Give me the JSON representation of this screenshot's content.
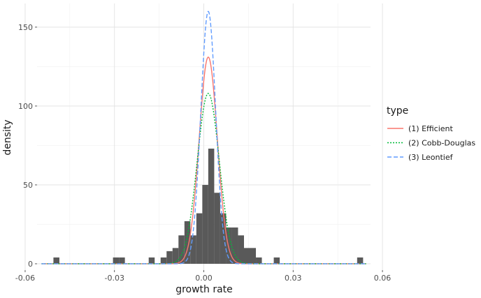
{
  "chart_data": {
    "type": "bar",
    "xlabel": "growth rate",
    "ylabel": "density",
    "xlim": [
      -0.056,
      0.056
    ],
    "ylim": [
      -4,
      165
    ],
    "x_ticks": [
      -0.06,
      -0.03,
      0.0,
      0.03,
      0.06
    ],
    "x_tick_labels": [
      "-0.06",
      "-0.03",
      "0.00",
      "0.03",
      "0.06"
    ],
    "y_ticks": [
      0,
      50,
      100,
      150
    ],
    "y_tick_labels": [
      "0",
      "50",
      "100",
      "150"
    ],
    "grid": true,
    "histogram": {
      "bin_width": 0.002,
      "color": "#595959",
      "bins": [
        {
          "x0": -0.0505,
          "x1": -0.0485,
          "density": 4
        },
        {
          "x0": -0.0305,
          "x1": -0.0285,
          "density": 4
        },
        {
          "x0": -0.0285,
          "x1": -0.0265,
          "density": 4
        },
        {
          "x0": -0.0185,
          "x1": -0.0165,
          "density": 4
        },
        {
          "x0": -0.0145,
          "x1": -0.0125,
          "density": 4
        },
        {
          "x0": -0.0125,
          "x1": -0.0105,
          "density": 8
        },
        {
          "x0": -0.0105,
          "x1": -0.0085,
          "density": 10
        },
        {
          "x0": -0.0085,
          "x1": -0.0065,
          "density": 18
        },
        {
          "x0": -0.0065,
          "x1": -0.0045,
          "density": 27
        },
        {
          "x0": -0.0045,
          "x1": -0.0025,
          "density": 18
        },
        {
          "x0": -0.0025,
          "x1": -0.0005,
          "density": 32
        },
        {
          "x0": -0.0005,
          "x1": 0.0015,
          "density": 50
        },
        {
          "x0": 0.0015,
          "x1": 0.0035,
          "density": 73
        },
        {
          "x0": 0.0035,
          "x1": 0.0055,
          "density": 45
        },
        {
          "x0": 0.0055,
          "x1": 0.0075,
          "density": 32
        },
        {
          "x0": 0.0075,
          "x1": 0.0095,
          "density": 23
        },
        {
          "x0": 0.0095,
          "x1": 0.0115,
          "density": 23
        },
        {
          "x0": 0.0115,
          "x1": 0.0135,
          "density": 18
        },
        {
          "x0": 0.0135,
          "x1": 0.0155,
          "density": 10
        },
        {
          "x0": 0.0155,
          "x1": 0.0175,
          "density": 10
        },
        {
          "x0": 0.0175,
          "x1": 0.0195,
          "density": 4
        },
        {
          "x0": 0.0235,
          "x1": 0.0255,
          "density": 4
        },
        {
          "x0": 0.0515,
          "x1": 0.0535,
          "density": 4
        }
      ]
    },
    "series": [
      {
        "name": "(1) Efficient",
        "distribution": "normal",
        "mean": 0.0015,
        "peak_density": 131,
        "color": "#F8766D",
        "dash": "solid"
      },
      {
        "name": "(2) Cobb-Douglas",
        "distribution": "normal",
        "mean": 0.0015,
        "peak_density": 108,
        "color": "#00BA38",
        "dash": "dotted"
      },
      {
        "name": "(3) Leontief",
        "distribution": "normal",
        "mean": 0.0015,
        "peak_density": 160,
        "color": "#619CFF",
        "dash": "dashed"
      }
    ],
    "curve_x_range": [
      -0.0545,
      0.0545
    ],
    "legend": {
      "title": "type",
      "position": "right"
    }
  }
}
